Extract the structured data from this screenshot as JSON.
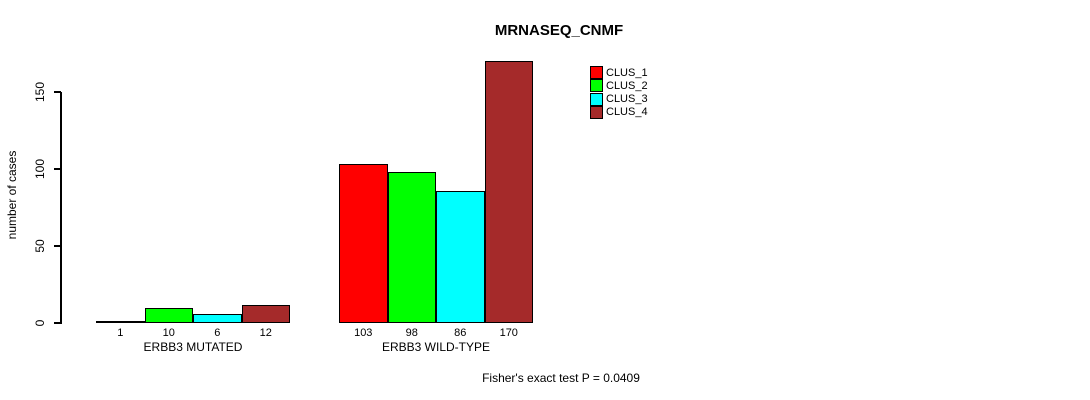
{
  "title": "MRNASEQ_CNMF",
  "y_axis": {
    "label": "number of cases"
  },
  "footer": "Fisher's exact test P = 0.0409",
  "legend": {
    "items": [
      {
        "label": "CLUS_1",
        "color": "#FF0000"
      },
      {
        "label": "CLUS_2",
        "color": "#00FF00"
      },
      {
        "label": "CLUS_3",
        "color": "#00FFFF"
      },
      {
        "label": "CLUS_4",
        "color": "#A52A2A"
      }
    ],
    "position": "top-right"
  },
  "chart_data": {
    "type": "bar",
    "title": "MRNASEQ_CNMF",
    "ylabel": "number of cases",
    "xlabel": "",
    "categories": [
      "ERBB3 MUTATED",
      "ERBB3 WILD-TYPE"
    ],
    "series": [
      {
        "name": "CLUS_1",
        "color": "#FF0000",
        "values": [
          1,
          103
        ]
      },
      {
        "name": "CLUS_2",
        "color": "#00FF00",
        "values": [
          10,
          98
        ]
      },
      {
        "name": "CLUS_3",
        "color": "#00FFFF",
        "values": [
          6,
          86
        ]
      },
      {
        "name": "CLUS_4",
        "color": "#A52A2A",
        "values": [
          12,
          170
        ]
      }
    ],
    "bar_value_labels": [
      [
        1,
        10,
        6,
        12
      ],
      [
        103,
        98,
        86,
        170
      ]
    ],
    "yticks": [
      0,
      50,
      100,
      150
    ],
    "ylim": [
      0,
      175
    ],
    "grid": false,
    "legend_position": "top-right",
    "annotation": "Fisher's exact test P = 0.0409"
  }
}
